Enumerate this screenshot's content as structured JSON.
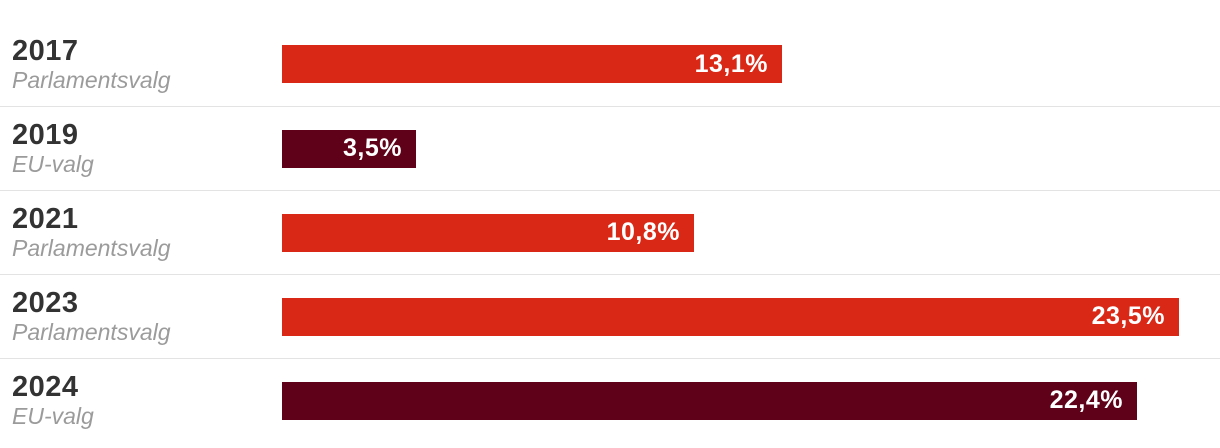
{
  "chart_data": {
    "type": "bar",
    "orientation": "horizontal",
    "title": "",
    "xlabel": "",
    "ylabel": "",
    "xlim": [
      0,
      24
    ],
    "grid": false,
    "legend": "none",
    "categories": [
      "2017",
      "2019",
      "2021",
      "2023",
      "2024"
    ],
    "values": [
      13.1,
      3.5,
      10.8,
      23.5,
      22.4
    ],
    "rows": [
      {
        "year": "2017",
        "election_type": "Parlamentsvalg",
        "value": 13.1,
        "value_label": "13,1%",
        "color": "#da2817"
      },
      {
        "year": "2019",
        "election_type": "EU-valg",
        "value": 3.5,
        "value_label": "3,5%",
        "color": "#5f0118"
      },
      {
        "year": "2021",
        "election_type": "Parlamentsvalg",
        "value": 10.8,
        "value_label": "10,8%",
        "color": "#da2817"
      },
      {
        "year": "2023",
        "election_type": "Parlamentsvalg",
        "value": 23.5,
        "value_label": "23,5%",
        "color": "#da2817"
      },
      {
        "year": "2024",
        "election_type": "EU-valg",
        "value": 22.4,
        "value_label": "22,4%",
        "color": "#5f0118"
      }
    ],
    "colors": {
      "parlamentsvalg_bar": "#da2817",
      "eu_valg_bar": "#5f0118",
      "value_label_text": "#ffffff",
      "year_text": "#333333",
      "election_type_text": "#9b9b9b",
      "divider": "#e3e3e3",
      "background": "#ffffff"
    }
  }
}
